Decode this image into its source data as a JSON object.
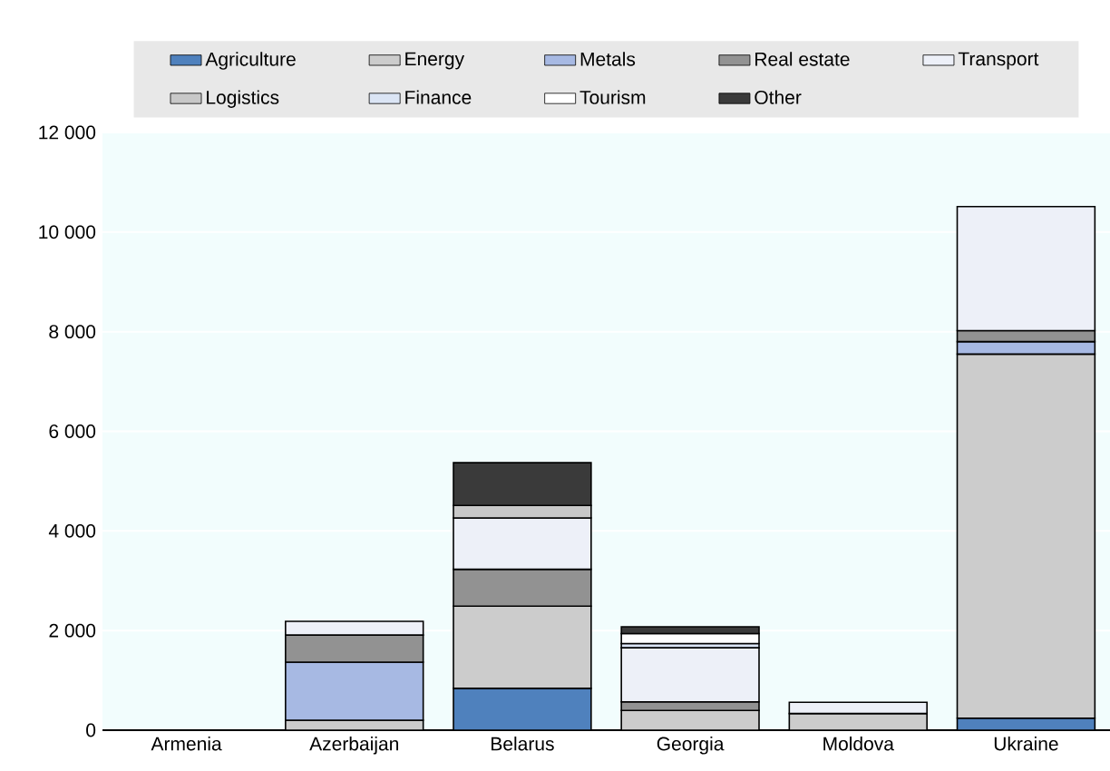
{
  "chart_data": {
    "type": "bar",
    "stacked": true,
    "categories": [
      "Armenia",
      "Azerbaijan",
      "Belarus",
      "Georgia",
      "Moldova",
      "Ukraine"
    ],
    "series": [
      {
        "name": "Agriculture",
        "color": "#4f81bd",
        "values": [
          null,
          null,
          840,
          null,
          null,
          240
        ]
      },
      {
        "name": "Energy",
        "color": "#cccccc",
        "values": [
          null,
          200,
          1650,
          395,
          335,
          7310
        ]
      },
      {
        "name": "Metals",
        "color": "#a7b9e3",
        "values": [
          null,
          1165,
          null,
          null,
          null,
          250
        ]
      },
      {
        "name": "Real estate",
        "color": "#929292",
        "values": [
          null,
          545,
          740,
          175,
          null,
          220
        ]
      },
      {
        "name": "Transport",
        "color": "#edf0f8",
        "values": [
          null,
          275,
          1030,
          1085,
          225,
          2490
        ]
      },
      {
        "name": "Logistics",
        "color": "#c8c8c8",
        "values": [
          null,
          null,
          250,
          null,
          null,
          null
        ]
      },
      {
        "name": "Finance",
        "color": "#dbe5f5",
        "values": [
          null,
          null,
          null,
          85,
          null,
          null
        ]
      },
      {
        "name": "Tourism",
        "color": "#ffffff",
        "values": [
          null,
          null,
          null,
          200,
          null,
          null
        ]
      },
      {
        "name": "Other",
        "color": "#3a3a3a",
        "values": [
          null,
          null,
          860,
          135,
          null,
          null
        ]
      }
    ],
    "ylim": [
      0,
      12000
    ],
    "yticks": [
      {
        "value": 0,
        "label": "0"
      },
      {
        "value": 2000,
        "label": "2 000"
      },
      {
        "value": 4000,
        "label": "4 000"
      },
      {
        "value": 6000,
        "label": "6 000"
      },
      {
        "value": 8000,
        "label": "8 000"
      },
      {
        "value": 10000,
        "label": "10 000"
      },
      {
        "value": 12000,
        "label": "12 000"
      }
    ],
    "grid": "y",
    "legend": "top"
  }
}
